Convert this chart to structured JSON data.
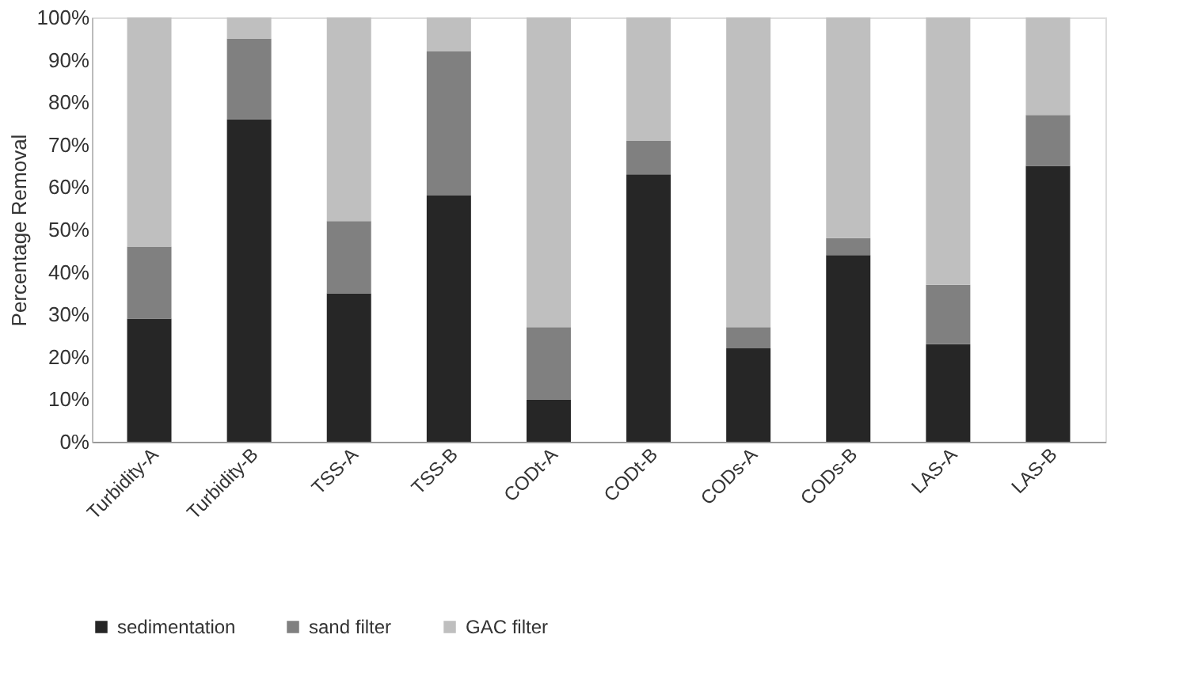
{
  "chart_data": {
    "type": "bar",
    "stacked": true,
    "ylabel": "Percentage Removal",
    "categories": [
      "Turbidity-A",
      "Turbidity-B",
      "TSS-A",
      "TSS-B",
      "CODt-A",
      "CODt-B",
      "CODs-A",
      "CODs-B",
      "LAS-A",
      "LAS-B"
    ],
    "series": [
      {
        "name": "sedimentation",
        "color": "#262626",
        "values": [
          29,
          76,
          35,
          58,
          10,
          63,
          22,
          44,
          23,
          65
        ]
      },
      {
        "name": "sand filter",
        "color": "#808080",
        "values": [
          17,
          19,
          17,
          34,
          17,
          8,
          5,
          4,
          14,
          12
        ]
      },
      {
        "name": "GAC filter",
        "color": "#bfbfbf",
        "values": [
          54,
          5,
          48,
          8,
          73,
          29,
          73,
          52,
          63,
          23
        ]
      }
    ],
    "ylim": [
      0,
      100
    ],
    "yticks": [
      {
        "value": 0,
        "label": "0%"
      },
      {
        "value": 10,
        "label": "10%"
      },
      {
        "value": 20,
        "label": "20%"
      },
      {
        "value": 30,
        "label": "30%"
      },
      {
        "value": 40,
        "label": "40%"
      },
      {
        "value": 50,
        "label": "50%"
      },
      {
        "value": 60,
        "label": "60%"
      },
      {
        "value": 70,
        "label": "70%"
      },
      {
        "value": 80,
        "label": "80%"
      },
      {
        "value": 90,
        "label": "90%"
      },
      {
        "value": 100,
        "label": "100%"
      }
    ],
    "grid": false,
    "legend": "bottom"
  }
}
